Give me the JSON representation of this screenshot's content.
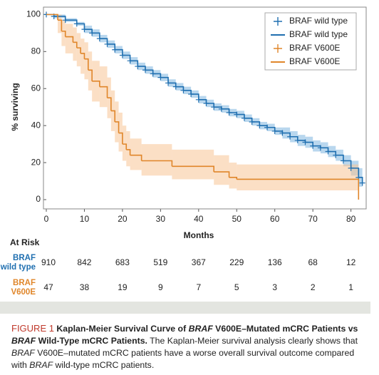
{
  "chart_data": {
    "type": "kaplan-meier",
    "xlabel": "Months",
    "ylabel": "% surviving",
    "xlim": [
      0,
      84
    ],
    "ylim": [
      -5,
      104
    ],
    "xticks": [
      0,
      10,
      20,
      30,
      40,
      50,
      60,
      70,
      80
    ],
    "yticks": [
      0,
      20,
      40,
      60,
      80,
      100
    ],
    "grid": false,
    "legend": "upper right",
    "series": [
      {
        "name": "BRAF wild type",
        "color": "#1f6fb0",
        "band_color": "#7fb6e0",
        "x": [
          0,
          2,
          5,
          8,
          10,
          12,
          14,
          16,
          18,
          20,
          22,
          24,
          26,
          28,
          30,
          32,
          34,
          36,
          38,
          40,
          42,
          44,
          46,
          48,
          50,
          52,
          54,
          56,
          58,
          60,
          62,
          64,
          66,
          68,
          70,
          72,
          74,
          76,
          78,
          80,
          82,
          83
        ],
        "values": [
          100,
          99,
          97,
          95,
          92,
          90,
          87,
          84,
          81,
          78,
          75,
          72,
          70,
          68,
          66,
          63,
          61,
          59,
          57,
          54,
          52,
          50,
          49,
          47,
          46,
          44,
          42,
          40,
          39,
          37,
          36,
          34,
          32,
          31,
          29,
          28,
          26,
          24,
          21,
          17,
          12,
          9
        ],
        "lower": [
          100,
          98,
          96,
          94,
          90,
          88,
          85,
          82,
          79,
          76,
          73,
          70,
          68,
          66,
          64,
          61,
          59,
          57,
          55,
          52,
          50,
          48,
          47,
          45,
          44,
          42,
          40,
          38,
          37,
          35,
          33,
          31,
          29,
          28,
          26,
          25,
          23,
          21,
          18,
          13,
          7,
          4
        ],
        "upper": [
          100,
          100,
          98,
          96,
          94,
          92,
          89,
          86,
          83,
          80,
          77,
          74,
          72,
          70,
          68,
          65,
          63,
          61,
          59,
          56,
          54,
          52,
          51,
          49,
          48,
          46,
          44,
          42,
          41,
          39,
          39,
          37,
          35,
          34,
          32,
          31,
          29,
          27,
          24,
          21,
          17,
          14
        ]
      },
      {
        "name": "BRAF V600E",
        "color": "#e0862a",
        "band_color": "#f7c596",
        "x": [
          0,
          3,
          4,
          5,
          7,
          8,
          9,
          10,
          11,
          12,
          14,
          16,
          17,
          18,
          19,
          20,
          21,
          22,
          25,
          33,
          44,
          48,
          50,
          82
        ],
        "values": [
          100,
          97,
          91,
          88,
          85,
          82,
          79,
          76,
          70,
          64,
          61,
          55,
          48,
          42,
          36,
          30,
          27,
          24,
          21,
          18,
          15,
          12,
          11,
          0
        ],
        "lower": [
          100,
          90,
          83,
          79,
          75,
          72,
          68,
          65,
          59,
          53,
          50,
          44,
          37,
          31,
          26,
          21,
          18,
          16,
          13,
          11,
          8,
          6,
          5,
          0
        ],
        "upper": [
          100,
          100,
          97,
          95,
          93,
          90,
          87,
          85,
          80,
          75,
          72,
          66,
          59,
          53,
          47,
          40,
          37,
          33,
          30,
          27,
          24,
          20,
          19,
          0
        ]
      }
    ],
    "at_risk": {
      "title": "At Risk",
      "rows": [
        {
          "label": [
            "BRAF",
            "wild type"
          ],
          "color": "#1f6fb0",
          "counts": [
            910,
            842,
            683,
            519,
            367,
            229,
            136,
            68,
            12
          ]
        },
        {
          "label": [
            "BRAF",
            "V600E"
          ],
          "color": "#e0862a",
          "counts": [
            47,
            38,
            19,
            9,
            7,
            5,
            3,
            2,
            1
          ]
        }
      ]
    }
  },
  "caption": [
    {
      "text": "FIGURE 1",
      "style": "label"
    },
    {
      "text": " Kaplan-Meier Survival Curve of ",
      "style": "bold"
    },
    {
      "text": "BRAF",
      "style": "bold-italic"
    },
    {
      "text": " V600E–Mutated mCRC Patients vs ",
      "style": "bold"
    },
    {
      "text": "BRAF",
      "style": "bold-italic"
    },
    {
      "text": " Wild-Type mCRC Patients.",
      "style": "bold"
    },
    {
      "text": " The Kaplan-Meier survival analysis clearly shows that ",
      "style": "normal"
    },
    {
      "text": "BRAF",
      "style": "italic"
    },
    {
      "text": " V600E–mutated mCRC patients have a worse overall survival outcome compared with ",
      "style": "normal"
    },
    {
      "text": "BRAF",
      "style": "italic"
    },
    {
      "text": " wild-type mCRC patients.",
      "style": "normal"
    }
  ]
}
